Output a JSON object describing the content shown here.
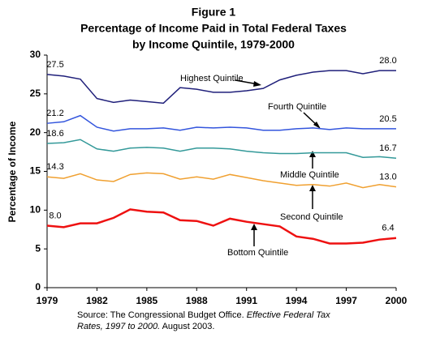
{
  "chart_data": {
    "type": "line",
    "title": [
      "Figure 1",
      "Percentage of Income Paid in Total Federal Taxes",
      "by Income Quintile, 1979-2000"
    ],
    "y_label": "Percentage of Income",
    "source": [
      "Source: The Congressional Budget Office. ",
      "Effective Federal Tax Rates, 1997 to 2000.",
      " August 2003."
    ],
    "x": [
      1979,
      1980,
      1981,
      1982,
      1983,
      1984,
      1985,
      1986,
      1987,
      1988,
      1989,
      1990,
      1991,
      1992,
      1993,
      1994,
      1995,
      1996,
      1997,
      1998,
      1999,
      2000
    ],
    "xlim": [
      1979,
      2000
    ],
    "xticks": [
      1979,
      1982,
      1985,
      1988,
      1991,
      1994,
      1997,
      2000
    ],
    "ylim": [
      0,
      30
    ],
    "yticks": [
      0,
      5,
      10,
      15,
      20,
      25,
      30
    ],
    "grid": false,
    "series": [
      {
        "name": "Highest Quintile",
        "color": "#1f1f7a",
        "values": [
          27.5,
          27.3,
          26.9,
          24.4,
          23.9,
          24.2,
          24.0,
          23.8,
          25.8,
          25.6,
          25.2,
          25.2,
          25.4,
          25.7,
          26.8,
          27.4,
          27.8,
          28.0,
          28.0,
          27.6,
          28.0,
          28.0
        ],
        "value_labels": [
          "27.5",
          null,
          null,
          null,
          null,
          null,
          null,
          null,
          null,
          null,
          null,
          null,
          null,
          null,
          null,
          null,
          null,
          null,
          null,
          null,
          null,
          "28.0"
        ]
      },
      {
        "name": "Fourth Quintile",
        "color": "#3355dd",
        "values": [
          21.2,
          21.4,
          22.2,
          20.7,
          20.2,
          20.5,
          20.5,
          20.6,
          20.3,
          20.7,
          20.6,
          20.7,
          20.6,
          20.3,
          20.3,
          20.5,
          20.6,
          20.4,
          20.6,
          20.5,
          20.5,
          20.5
        ],
        "value_labels": [
          "21.2",
          null,
          null,
          null,
          null,
          null,
          null,
          null,
          null,
          null,
          null,
          null,
          null,
          null,
          null,
          null,
          null,
          null,
          null,
          null,
          null,
          "20.5"
        ]
      },
      {
        "name": "Middle Quintile",
        "color": "#339999",
        "values": [
          18.6,
          18.7,
          19.1,
          17.9,
          17.6,
          18.0,
          18.1,
          18.0,
          17.6,
          18.0,
          18.0,
          17.9,
          17.6,
          17.4,
          17.3,
          17.3,
          17.4,
          17.4,
          17.4,
          16.8,
          16.9,
          16.7
        ],
        "value_labels": [
          "18.6",
          null,
          null,
          null,
          null,
          null,
          null,
          null,
          null,
          null,
          null,
          null,
          null,
          null,
          null,
          null,
          null,
          null,
          null,
          null,
          null,
          "16.7"
        ]
      },
      {
        "name": "Second Quintile",
        "color": "#f0a030",
        "values": [
          14.3,
          14.1,
          14.7,
          13.9,
          13.7,
          14.6,
          14.8,
          14.7,
          14.0,
          14.3,
          14.0,
          14.6,
          14.2,
          13.8,
          13.5,
          13.2,
          13.3,
          13.1,
          13.5,
          12.9,
          13.3,
          13.0
        ],
        "value_labels": [
          "14.3",
          null,
          null,
          null,
          null,
          null,
          null,
          null,
          null,
          null,
          null,
          null,
          null,
          null,
          null,
          null,
          null,
          null,
          null,
          null,
          null,
          "13.0"
        ]
      },
      {
        "name": "Bottom Quintile",
        "color": "#ee1111",
        "values": [
          8.0,
          7.8,
          8.3,
          8.3,
          9.0,
          10.1,
          9.8,
          9.7,
          8.7,
          8.6,
          8.0,
          8.9,
          8.5,
          8.2,
          7.9,
          6.6,
          6.3,
          5.7,
          5.7,
          5.8,
          6.2,
          6.4
        ],
        "value_labels": [
          "8.0",
          null,
          null,
          null,
          null,
          null,
          null,
          null,
          null,
          null,
          null,
          null,
          null,
          null,
          null,
          null,
          null,
          null,
          null,
          null,
          null,
          "6.4"
        ]
      }
    ]
  }
}
